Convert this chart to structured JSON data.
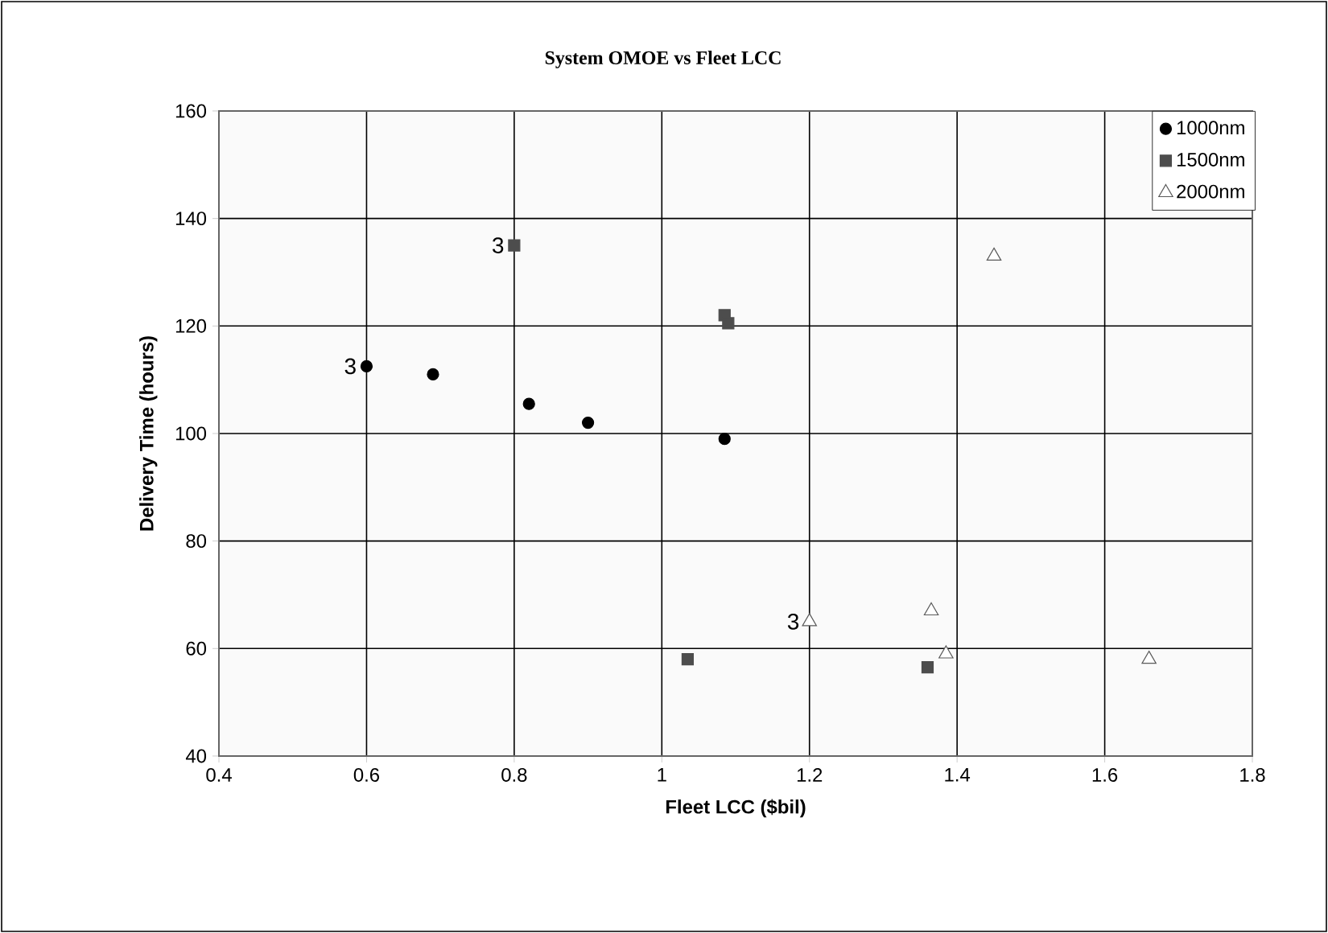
{
  "chart_data": {
    "type": "scatter",
    "title": "System OMOE vs Fleet LCC",
    "xlabel": "Fleet LCC ($bil)",
    "ylabel": "Delivery Time (hours)",
    "xlim": [
      0.4,
      1.8
    ],
    "xticks": [
      0.4,
      0.6,
      0.8,
      1,
      1.2,
      1.4,
      1.6,
      1.8
    ],
    "ylim": [
      40,
      160
    ],
    "yticks": [
      40,
      60,
      80,
      100,
      120,
      140,
      160
    ],
    "grid": true,
    "legend": "top right",
    "series": [
      {
        "name": "1000nm",
        "color": "#000000",
        "marker": "circle",
        "x": [
          0.6,
          0.69,
          0.82,
          0.9,
          1.085
        ],
        "values": [
          112.5,
          111,
          105.5,
          102,
          99
        ]
      },
      {
        "name": "1500nm",
        "color": "#4d4d4d",
        "marker": "square",
        "x": [
          0.8,
          1.085,
          1.09,
          1.035,
          1.36
        ],
        "values": [
          135,
          122,
          120.5,
          58,
          56.5
        ]
      },
      {
        "name": "2000nm",
        "color": "#595959",
        "marker": "triangle",
        "x": [
          1.45,
          1.2,
          1.365,
          1.385,
          1.66
        ],
        "values": [
          133,
          65,
          67,
          59,
          58
        ]
      }
    ],
    "annotations": [
      {
        "text": "3",
        "x": 0.6,
        "y": 112.5
      },
      {
        "text": "3",
        "x": 0.8,
        "y": 135
      },
      {
        "text": "3",
        "x": 1.2,
        "y": 65
      }
    ]
  }
}
